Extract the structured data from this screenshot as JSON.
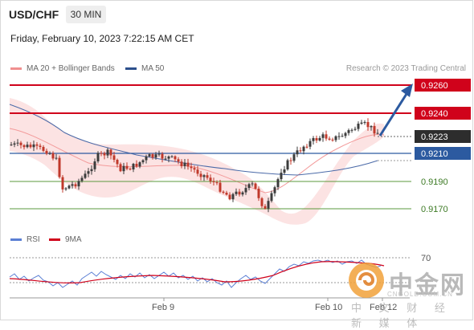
{
  "header": {
    "symbol": "USD/CHF",
    "timeframe": "30 MIN",
    "datetime": "Friday, February 10, 2023 7:22:15 AM CET"
  },
  "legend": {
    "ma20_label": "MA 20 + Bollinger Bands",
    "ma50_label": "MA 50",
    "research": "Research © 2023 Trading Central"
  },
  "rsi_legend": {
    "rsi_label": "RSI",
    "ma_label": "9MA"
  },
  "price_labels": {
    "target2": "0.9260",
    "target1": "0.9240",
    "current": "0.9223",
    "pivot": "0.9210",
    "support1": "0.9190",
    "support2": "0.9170"
  },
  "rsi_axis": {
    "level": "70"
  },
  "x_axis": {
    "tick1": "Feb 9",
    "tick2": "Feb 10",
    "tick3": "Feb 12"
  },
  "watermark": {
    "name": "中金网",
    "url": "CNGOLD.COM.CN",
    "sub": "中 文 财 经 新 媒 体"
  },
  "colors": {
    "resistance": "#d0021b",
    "pivot": "#2c5aa0",
    "support": "#5b9a3c",
    "bullish": "#3c3c3c",
    "bearish": "#c0392b",
    "band_fill": "#fbdada",
    "ma50": "#4b6aa8",
    "rsi": "#5b7fd4",
    "rsi_ma": "#d0021b",
    "arrow": "#2c5aa0"
  }
}
